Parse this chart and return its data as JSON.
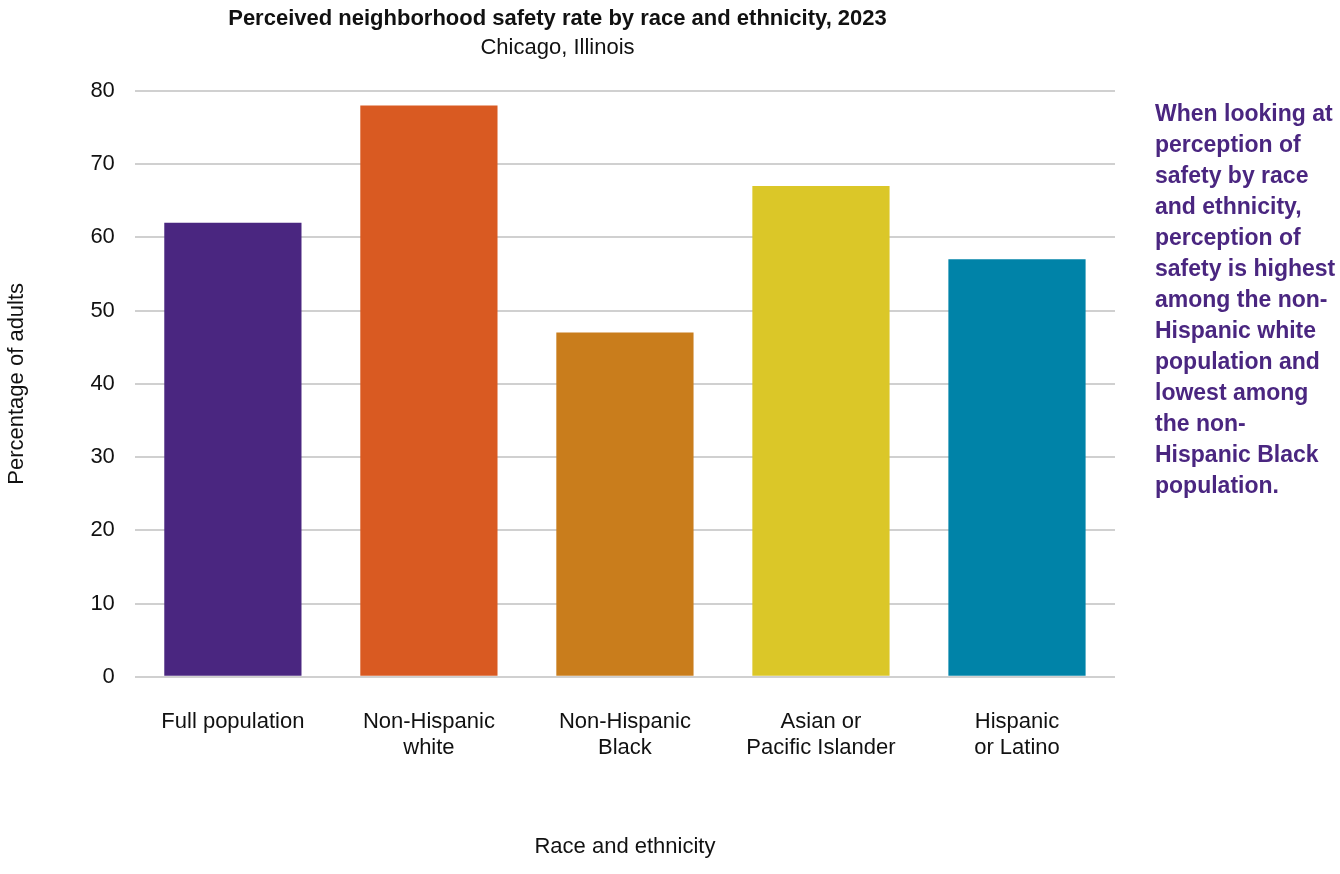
{
  "chart_data": {
    "type": "bar",
    "title": "Perceived neighborhood safety rate by race and ethnicity, 2023",
    "subtitle": "Chicago, Illinois",
    "xlabel": "Race and ethnicity",
    "ylabel": "Percentage of adults",
    "categories": [
      "Full population",
      "Non-Hispanic\nwhite",
      "Non-Hispanic\nBlack",
      "Asian or\nPacific Islander",
      "Hispanic\nor Latino"
    ],
    "values": [
      62,
      78,
      47,
      67,
      57
    ],
    "colors": [
      "#4a2680",
      "#d95a22",
      "#c97d1c",
      "#dbc728",
      "#0083a8"
    ],
    "ylim": [
      0,
      80
    ],
    "yticks": [
      0,
      10,
      20,
      30,
      40,
      50,
      60,
      70,
      80
    ],
    "grid": "y",
    "legend": false,
    "annotations": [
      "When looking at perception of safety by race and ethnicity, perception of safety is highest among the non-Hispanic white population and lowest among the non-Hispanic Black population."
    ]
  }
}
